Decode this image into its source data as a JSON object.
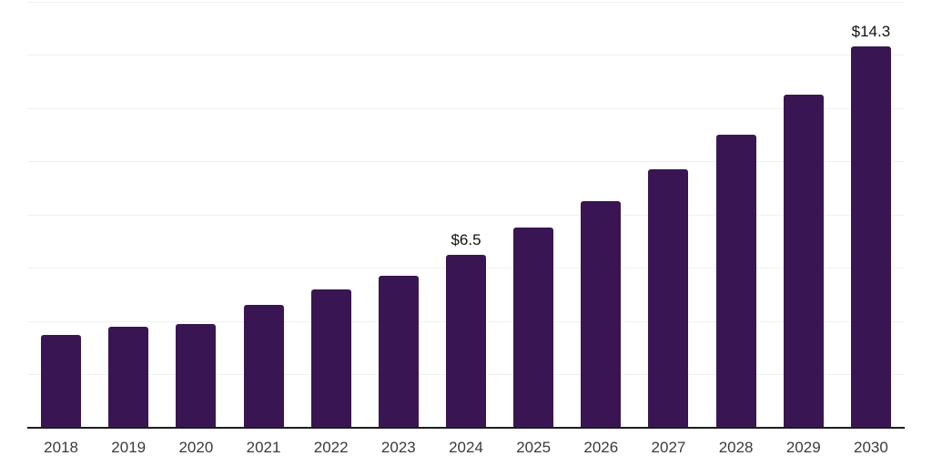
{
  "chart_data": {
    "type": "bar",
    "title": "",
    "xlabel": "",
    "ylabel": "",
    "categories": [
      "2018",
      "2019",
      "2020",
      "2021",
      "2022",
      "2023",
      "2024",
      "2025",
      "2026",
      "2027",
      "2028",
      "2029",
      "2030"
    ],
    "values": [
      3.5,
      3.8,
      3.9,
      4.6,
      5.2,
      5.7,
      6.5,
      7.5,
      8.5,
      9.7,
      11.0,
      12.5,
      14.3
    ],
    "point_labels": [
      "",
      "",
      "",
      "",
      "",
      "",
      "$6.5",
      "",
      "",
      "",
      "",
      "",
      "$14.3"
    ],
    "ylim": [
      0,
      16
    ],
    "grid_step": 2,
    "grid": "horizontal light gridlines, no y-axis tick labels",
    "legend_position": "none"
  },
  "colors": {
    "bar": "#391653",
    "gridline": "#f1f1f3",
    "axis_line": "#1d1d1f",
    "tick_label": "#3b3b3b",
    "point_label": "#111111",
    "background": "#ffffff"
  }
}
